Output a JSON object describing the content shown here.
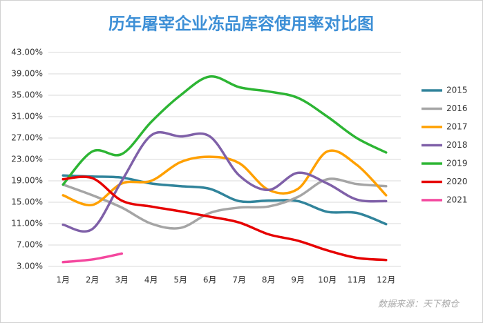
{
  "chart_data": {
    "type": "line",
    "title": "历年屠宰企业冻品库容使用率对比图",
    "source": "数据来源：天下粮仓",
    "categories": [
      "1月",
      "2月",
      "3月",
      "4月",
      "5月",
      "6月",
      "7月",
      "8月",
      "9月",
      "10月",
      "11月",
      "12月"
    ],
    "series": [
      {
        "name": "2015",
        "color": "#31849b",
        "values": [
          20.0,
          19.8,
          19.6,
          18.5,
          18.0,
          17.5,
          15.2,
          15.3,
          15.2,
          13.2,
          13.0,
          10.9
        ]
      },
      {
        "name": "2016",
        "color": "#a5a5a5",
        "values": [
          18.3,
          16.3,
          14.0,
          11.0,
          10.2,
          13.0,
          14.0,
          14.2,
          16.0,
          19.3,
          18.4,
          18.0
        ]
      },
      {
        "name": "2017",
        "color": "#ffa000",
        "values": [
          16.3,
          14.5,
          18.5,
          19.0,
          22.5,
          23.5,
          22.3,
          17.3,
          17.5,
          24.5,
          22.0,
          16.3
        ]
      },
      {
        "name": "2018",
        "color": "#7f60a8",
        "values": [
          10.8,
          10.0,
          19.0,
          27.5,
          27.3,
          27.3,
          20.0,
          17.3,
          20.5,
          18.5,
          15.5,
          15.2
        ]
      },
      {
        "name": "2019",
        "color": "#2db534",
        "values": [
          18.3,
          24.5,
          24.0,
          30.0,
          35.0,
          38.5,
          36.5,
          35.7,
          34.5,
          31.0,
          27.0,
          24.3
        ]
      },
      {
        "name": "2020",
        "color": "#e60000",
        "values": [
          19.3,
          19.5,
          15.3,
          14.2,
          13.3,
          12.3,
          11.2,
          9.0,
          7.8,
          6.0,
          4.6,
          4.2
        ]
      },
      {
        "name": "2021",
        "color": "#f4479e",
        "values": [
          3.8,
          4.3,
          5.4,
          null,
          null,
          null,
          null,
          null,
          null,
          null,
          null,
          null
        ]
      }
    ],
    "ylim": [
      3,
      43
    ],
    "yticks": [
      {
        "value": 3,
        "label": "3.00%"
      },
      {
        "value": 7,
        "label": "7.00%"
      },
      {
        "value": 11,
        "label": "11.00%"
      },
      {
        "value": 15,
        "label": "15.00%"
      },
      {
        "value": 19,
        "label": "19.00%"
      },
      {
        "value": 23,
        "label": "23.00%"
      },
      {
        "value": 27,
        "label": "27.00%"
      },
      {
        "value": 31,
        "label": "31.00%"
      },
      {
        "value": 35,
        "label": "35.00%"
      },
      {
        "value": 39,
        "label": "39.00%"
      },
      {
        "value": 43,
        "label": "43.00%"
      }
    ],
    "grid": true,
    "legend": "right"
  }
}
